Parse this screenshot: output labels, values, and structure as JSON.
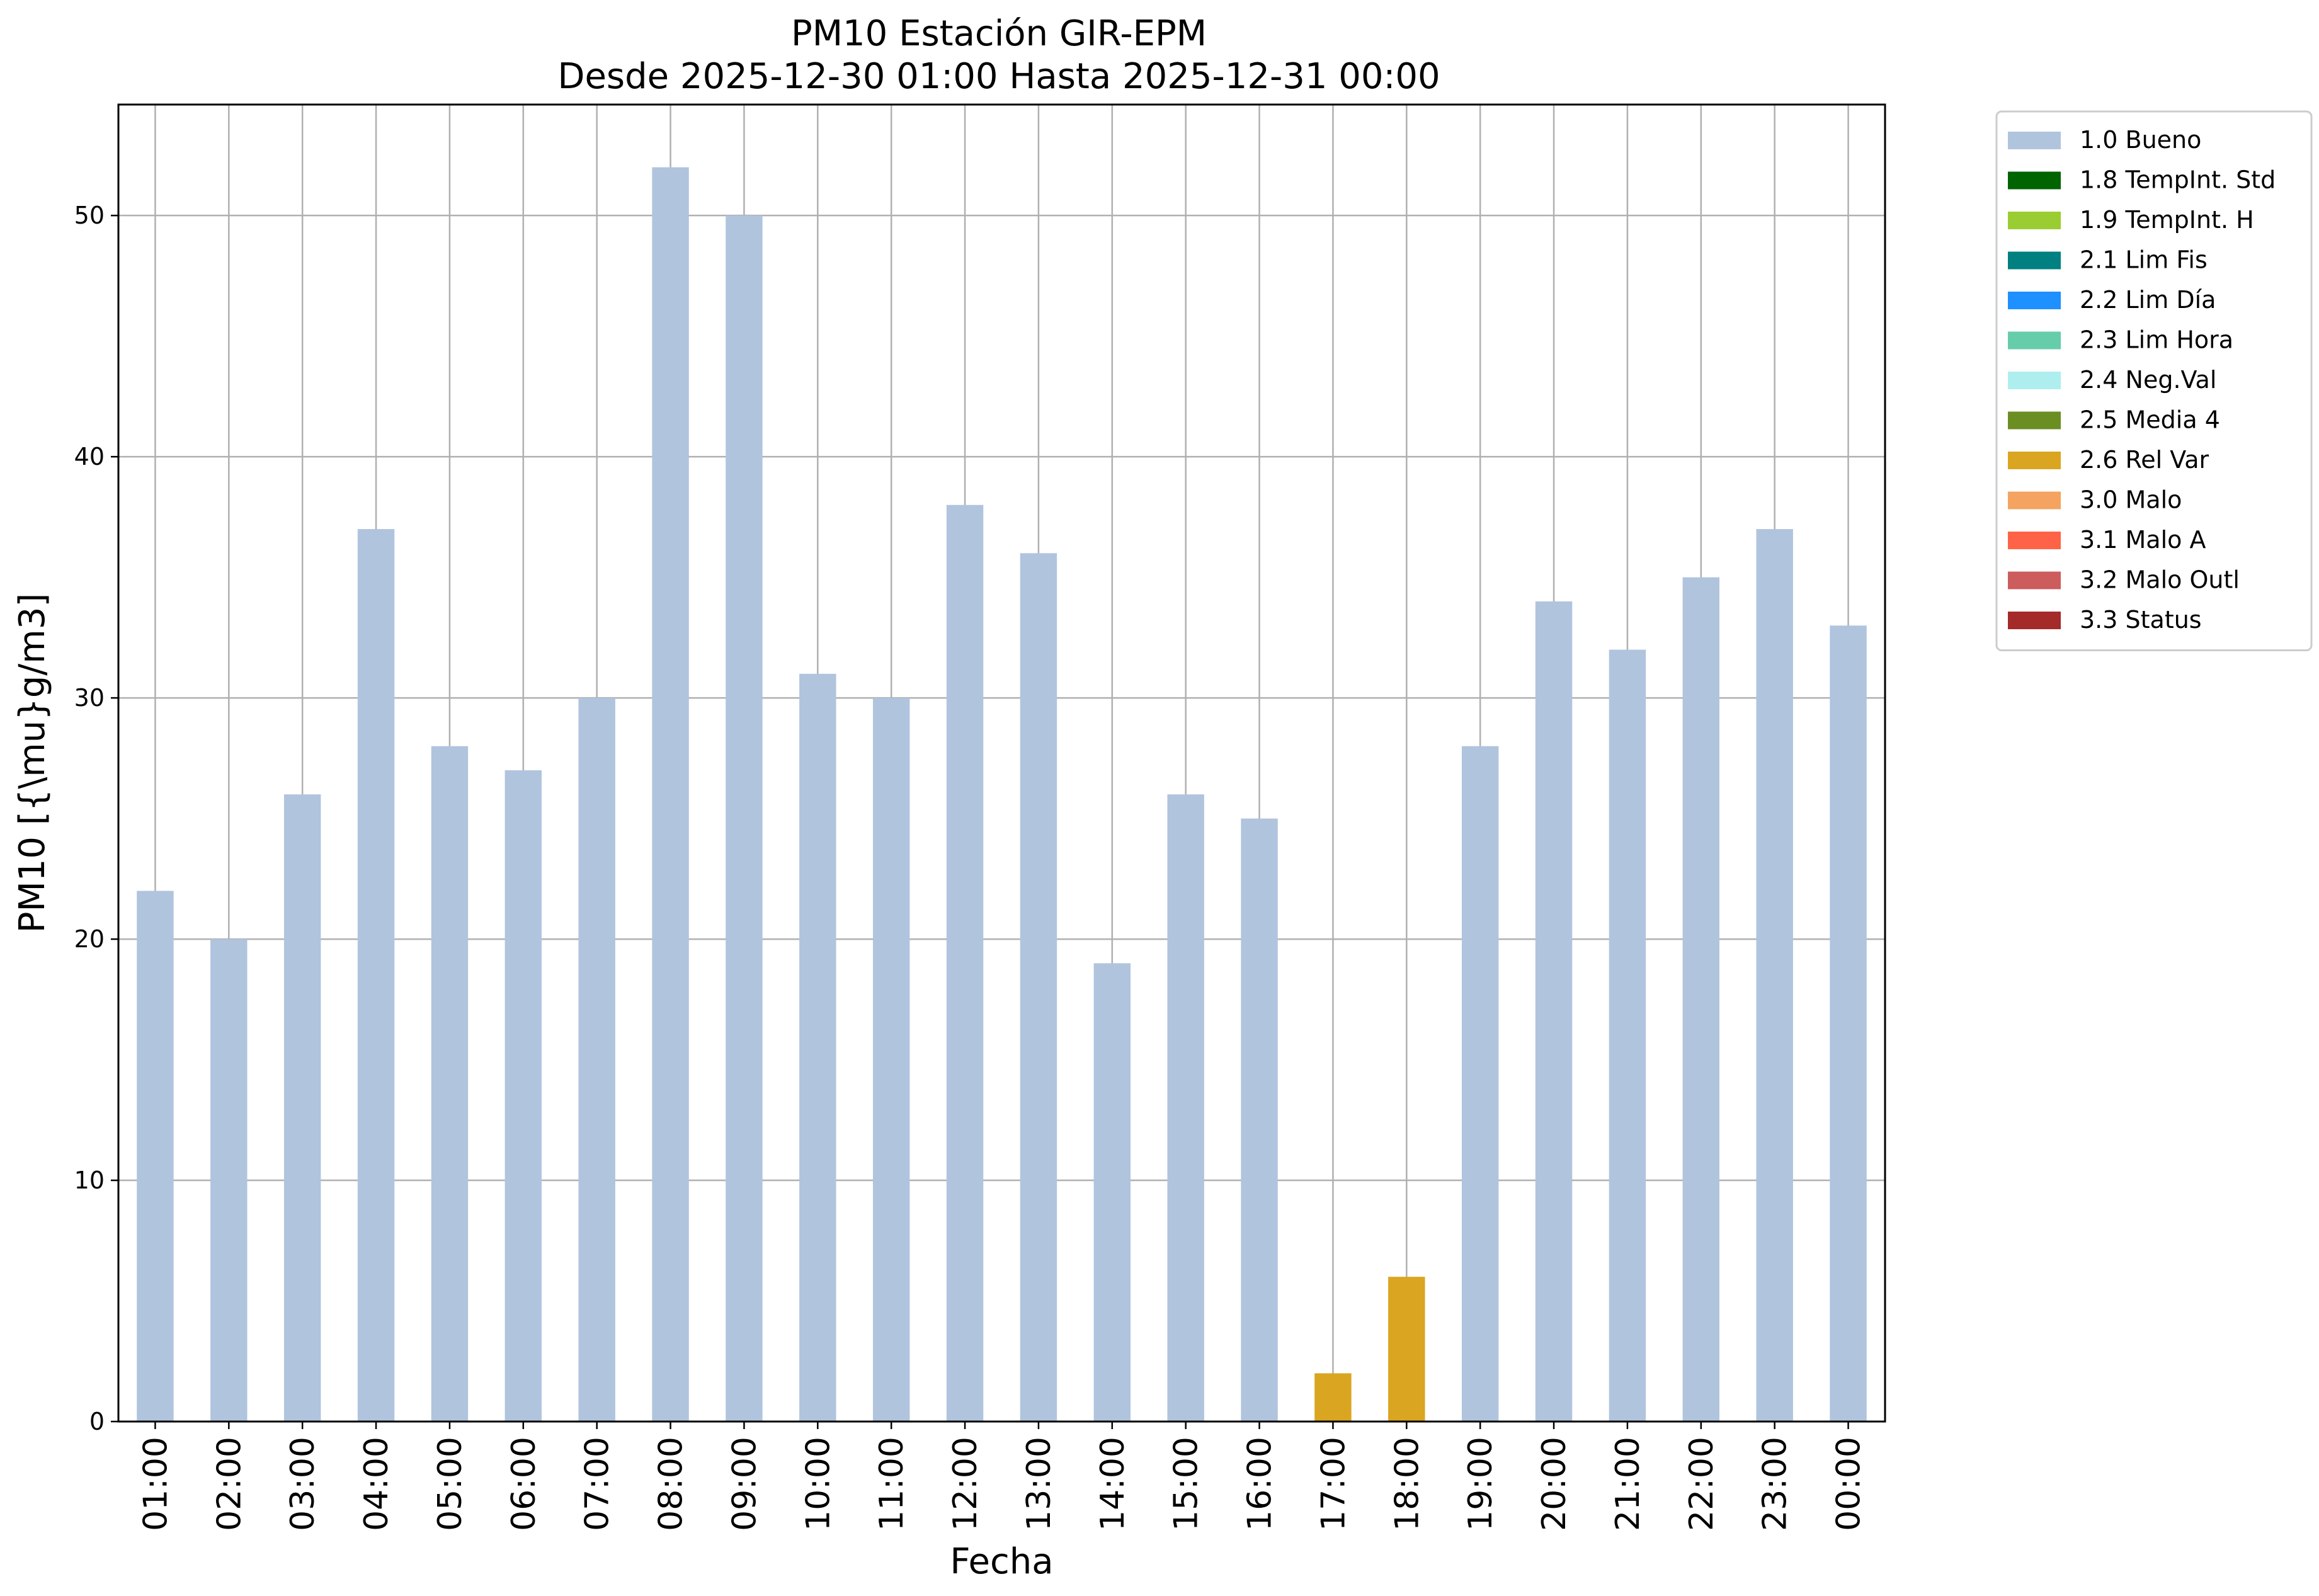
{
  "chart_data": {
    "type": "bar",
    "title": "PM10 Estación GIR-EPM",
    "subtitle": "Desde 2025-12-30 01:00 Hasta 2025-12-31 00:00",
    "xlabel": "Fecha",
    "ylabel": "PM10 [{\\mu}g/m3]",
    "ylim": [
      0,
      54.6
    ],
    "yticks": [
      0,
      10,
      20,
      30,
      40,
      50
    ],
    "grid": true,
    "legend_position": "outside-top-right",
    "categories": [
      "01:00",
      "02:00",
      "03:00",
      "04:00",
      "05:00",
      "06:00",
      "07:00",
      "08:00",
      "09:00",
      "10:00",
      "11:00",
      "12:00",
      "13:00",
      "14:00",
      "15:00",
      "16:00",
      "17:00",
      "18:00",
      "19:00",
      "20:00",
      "21:00",
      "22:00",
      "23:00",
      "00:00"
    ],
    "values": [
      22,
      20,
      26,
      37,
      28,
      27,
      30,
      52,
      50,
      31,
      30,
      38,
      36,
      19,
      26,
      25,
      2,
      6,
      28,
      34,
      32,
      35,
      37,
      33
    ],
    "flags": [
      "1.0 Bueno",
      "1.0 Bueno",
      "1.0 Bueno",
      "1.0 Bueno",
      "1.0 Bueno",
      "1.0 Bueno",
      "1.0 Bueno",
      "1.0 Bueno",
      "1.0 Bueno",
      "1.0 Bueno",
      "1.0 Bueno",
      "1.0 Bueno",
      "1.0 Bueno",
      "1.0 Bueno",
      "1.0 Bueno",
      "1.0 Bueno",
      "2.6 Rel Var",
      "2.6 Rel Var",
      "1.0 Bueno",
      "1.0 Bueno",
      "1.0 Bueno",
      "1.0 Bueno",
      "1.0 Bueno",
      "1.0 Bueno"
    ],
    "legend": [
      {
        "label": "1.0 Bueno",
        "color": "#b0c4de"
      },
      {
        "label": "1.8 TempInt. Std",
        "color": "#006400"
      },
      {
        "label": "1.9 TempInt. H",
        "color": "#9acd32"
      },
      {
        "label": "2.1 Lim Fis",
        "color": "#008080"
      },
      {
        "label": "2.2 Lim Día",
        "color": "#1e90ff"
      },
      {
        "label": "2.3 Lim Hora",
        "color": "#66cdaa"
      },
      {
        "label": "2.4 Neg.Val",
        "color": "#afeeee"
      },
      {
        "label": "2.5 Media 4",
        "color": "#6b8e23"
      },
      {
        "label": "2.6 Rel Var",
        "color": "#daa520"
      },
      {
        "label": "3.0 Malo",
        "color": "#f4a460"
      },
      {
        "label": "3.1 Malo A",
        "color": "#ff6347"
      },
      {
        "label": "3.2 Malo Outl",
        "color": "#cd5c5c"
      },
      {
        "label": "3.3 Status",
        "color": "#a52a2a"
      }
    ]
  }
}
